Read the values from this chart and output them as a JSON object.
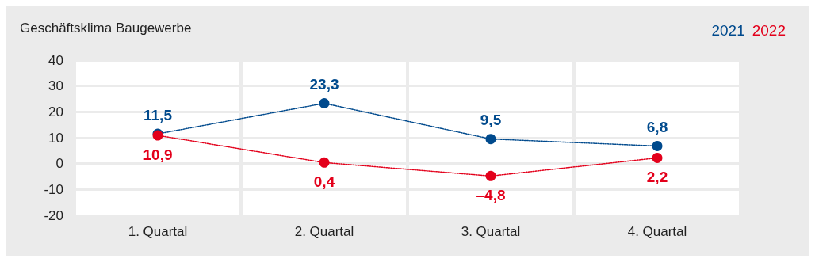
{
  "chart_data": {
    "type": "line",
    "title": "Geschäftsklima Baugewerbe",
    "categories": [
      "1. Quartal",
      "2. Quartal",
      "3. Quartal",
      "4. Quartal"
    ],
    "series": [
      {
        "name": "2021",
        "color": "#004a8d",
        "values": [
          11.5,
          23.3,
          9.5,
          6.8
        ],
        "value_labels": [
          "11,5",
          "23,3",
          "9,5",
          "6,8"
        ]
      },
      {
        "name": "2022",
        "color": "#e3001b",
        "values": [
          10.9,
          0.4,
          -4.8,
          2.2
        ],
        "value_labels": [
          "10,9",
          "0,4",
          "–4,8",
          "2,2"
        ]
      }
    ],
    "ylim": [
      -20,
      40
    ],
    "yticks": [
      -20,
      -10,
      0,
      10,
      20,
      30,
      40
    ],
    "grid": true,
    "legend": "top right",
    "marker": "circle",
    "line_style": "dotted"
  }
}
